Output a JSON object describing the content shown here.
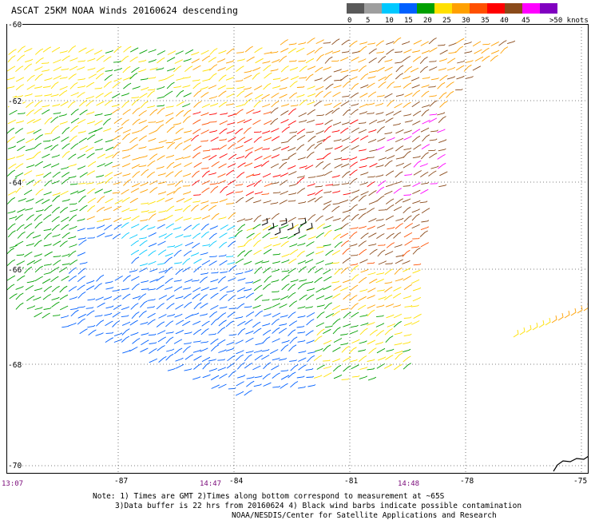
{
  "title": "ASCAT 25KM NOAA Winds 20160624 descending",
  "legend": {
    "labels": [
      "0",
      "5",
      "10",
      "15",
      "20",
      "25",
      "30",
      "35",
      "40",
      "45",
      ">50 knots"
    ],
    "colors": [
      "#595959",
      "#9e9e9e",
      "#00c8ff",
      "#0060ff",
      "#00a000",
      "#ffe000",
      "#ffa000",
      "#ff5000",
      "#ff0000",
      "#8a4a1a",
      "#ff00ff",
      "#8000c0"
    ]
  },
  "axes": {
    "y_labels": [
      "-60",
      "-62",
      "-64",
      "-66",
      "-68",
      "-70"
    ],
    "x_labels": [
      "-87",
      "-84",
      "-81",
      "-78",
      "-75"
    ],
    "corner_time": "13:07",
    "times": [
      "14:47",
      "14:48"
    ]
  },
  "notes": {
    "line1": "Note: 1) Times are GMT 2)Times along bottom correspond to measurement at ~65S",
    "line2": "3)Data buffer is 22 hrs from 20160624 4) Black wind barbs indicate possible contamination",
    "line3": "NOAA/NESDIS/Center for Satellite Applications and Research"
  }
}
